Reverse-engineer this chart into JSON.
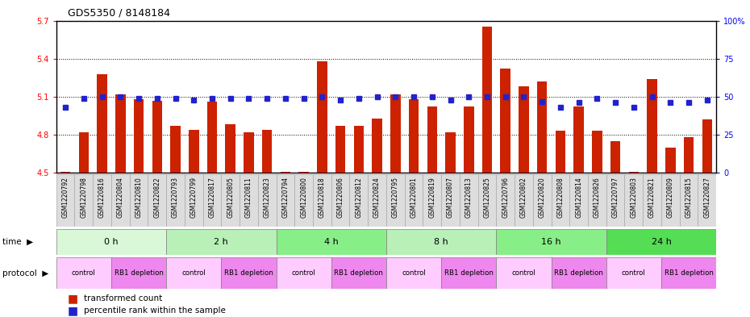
{
  "title": "GDS5350 / 8148184",
  "samples": [
    "GSM1220792",
    "GSM1220798",
    "GSM1220816",
    "GSM1220804",
    "GSM1220810",
    "GSM1220822",
    "GSM1220793",
    "GSM1220799",
    "GSM1220817",
    "GSM1220805",
    "GSM1220811",
    "GSM1220823",
    "GSM1220794",
    "GSM1220800",
    "GSM1220818",
    "GSM1220806",
    "GSM1220812",
    "GSM1220824",
    "GSM1220795",
    "GSM1220801",
    "GSM1220819",
    "GSM1220807",
    "GSM1220813",
    "GSM1220825",
    "GSM1220796",
    "GSM1220802",
    "GSM1220820",
    "GSM1220808",
    "GSM1220814",
    "GSM1220826",
    "GSM1220797",
    "GSM1220803",
    "GSM1220821",
    "GSM1220809",
    "GSM1220815",
    "GSM1220827"
  ],
  "bar_values": [
    4.51,
    4.82,
    5.28,
    5.12,
    5.08,
    5.07,
    4.87,
    4.84,
    5.06,
    4.88,
    4.82,
    4.84,
    4.51,
    4.51,
    5.38,
    4.87,
    4.87,
    4.93,
    5.12,
    5.08,
    5.02,
    4.82,
    5.02,
    5.65,
    5.32,
    5.18,
    5.22,
    4.83,
    5.02,
    4.83,
    4.75,
    4.51,
    5.24,
    4.7,
    4.78,
    4.92
  ],
  "percentile_values": [
    43,
    49,
    50,
    50,
    49,
    49,
    49,
    48,
    49,
    49,
    49,
    49,
    49,
    49,
    50,
    48,
    49,
    50,
    50,
    50,
    50,
    48,
    50,
    50,
    50,
    50,
    47,
    43,
    46,
    49,
    46,
    43,
    50,
    46,
    46,
    48
  ],
  "time_groups": [
    {
      "label": "0 h",
      "start": 0,
      "end": 6
    },
    {
      "label": "2 h",
      "start": 6,
      "end": 12
    },
    {
      "label": "4 h",
      "start": 12,
      "end": 18
    },
    {
      "label": "8 h",
      "start": 18,
      "end": 24
    },
    {
      "label": "16 h",
      "start": 24,
      "end": 30
    },
    {
      "label": "24 h",
      "start": 30,
      "end": 36
    }
  ],
  "time_colors": [
    "#d8f8d8",
    "#b8f0b8",
    "#88ee88",
    "#b8f0b8",
    "#88ee88",
    "#55dd55"
  ],
  "protocol_groups": [
    {
      "label": "control",
      "start": 0,
      "end": 3
    },
    {
      "label": "RB1 depletion",
      "start": 3,
      "end": 6
    },
    {
      "label": "control",
      "start": 6,
      "end": 9
    },
    {
      "label": "RB1 depletion",
      "start": 9,
      "end": 12
    },
    {
      "label": "control",
      "start": 12,
      "end": 15
    },
    {
      "label": "RB1 depletion",
      "start": 15,
      "end": 18
    },
    {
      "label": "control",
      "start": 18,
      "end": 21
    },
    {
      "label": "RB1 depletion",
      "start": 21,
      "end": 24
    },
    {
      "label": "control",
      "start": 24,
      "end": 27
    },
    {
      "label": "RB1 depletion",
      "start": 27,
      "end": 30
    },
    {
      "label": "control",
      "start": 30,
      "end": 33
    },
    {
      "label": "RB1 depletion",
      "start": 33,
      "end": 36
    }
  ],
  "protocol_colors": [
    "#ffccff",
    "#ee88ee"
  ],
  "ylim_left": [
    4.5,
    5.7
  ],
  "ylim_right": [
    0,
    100
  ],
  "yticks_left": [
    4.5,
    4.8,
    5.1,
    5.4,
    5.7
  ],
  "yticks_right": [
    0,
    25,
    50,
    75,
    100
  ],
  "ytick_labels_right": [
    "0",
    "25",
    "50",
    "75",
    "100%"
  ],
  "bar_color": "#cc2200",
  "blue_color": "#2222cc",
  "bar_bottom": 4.5,
  "background_color": "#ffffff",
  "grid_color": "#333333",
  "label_bg_color": "#dddddd",
  "label_border_color": "#aaaaaa"
}
